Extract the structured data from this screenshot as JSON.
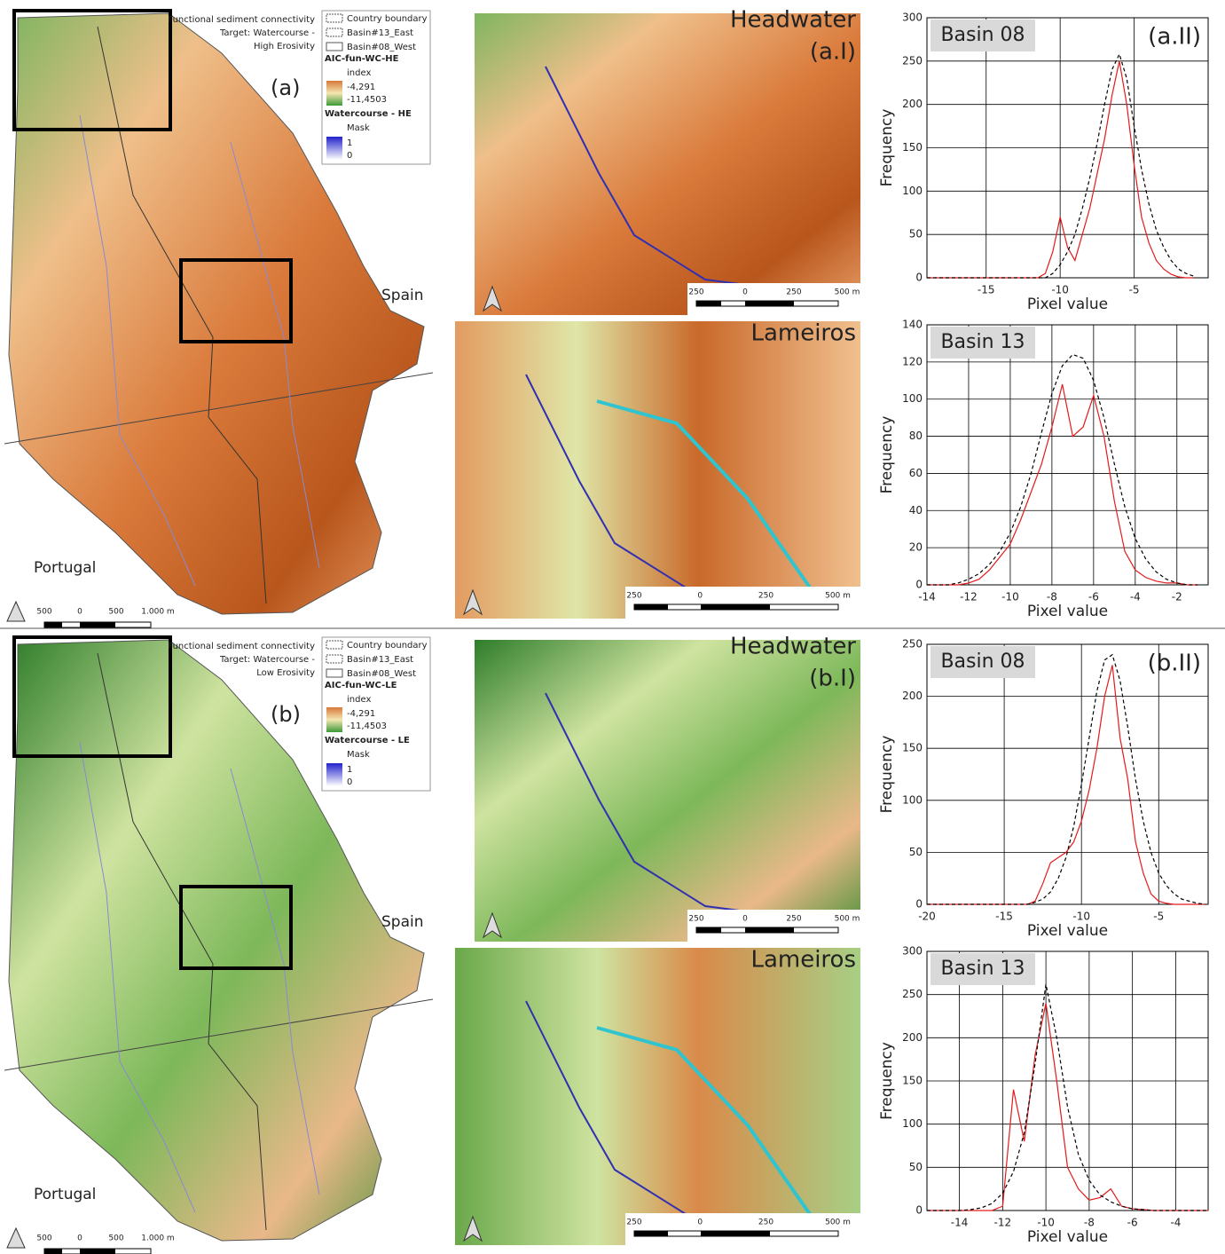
{
  "panels": [
    {
      "label": "(a)",
      "legend_title": [
        "Functional sediment connectivity",
        "Target: Watercourse -",
        "High Erosivity"
      ],
      "legend_items": [
        "Country boundary",
        "Basin#13_East",
        "Basin#08_West"
      ],
      "index_name": "AIC-fun-WC-HE",
      "index_label": "index",
      "index_values": [
        "-4,291",
        "-11,4503"
      ],
      "water_name": "Watercourse - HE",
      "water_label": "Mask",
      "water_values": [
        "1",
        "0"
      ],
      "countries": [
        "Spain",
        "Portugal"
      ],
      "scale": [
        "500",
        "0",
        "500",
        "1.000 m"
      ],
      "insets": [
        {
          "title": "Headwater",
          "label": "(a.I)",
          "scale": [
            "250",
            "0",
            "250",
            "500 m"
          ]
        },
        {
          "title": "Lameiros",
          "scale": [
            "250",
            "0",
            "250",
            "500 m"
          ]
        }
      ]
    },
    {
      "label": "(b)",
      "legend_title": [
        "Functional sediment connectivity",
        "Target: Watercourse -",
        "Low Erosivity"
      ],
      "legend_items": [
        "Country boundary",
        "Basin#13_East",
        "Basin#08_West"
      ],
      "index_name": "AIC-fun-WC-LE",
      "index_label": "index",
      "index_values": [
        "-4,291",
        "-11,4503"
      ],
      "water_name": "Watercourse - LE",
      "water_label": "Mask",
      "water_values": [
        "1",
        "0"
      ],
      "countries": [
        "Spain",
        "Portugal"
      ],
      "scale": [
        "500",
        "0",
        "500",
        "1.000 m"
      ],
      "insets": [
        {
          "title": "Headwater",
          "label": "(b.I)",
          "scale": [
            "250",
            "0",
            "250",
            "500 m"
          ]
        },
        {
          "title": "Lameiros",
          "scale": [
            "250",
            "0",
            "250",
            "500 m"
          ]
        }
      ]
    }
  ],
  "chart_data": [
    {
      "type": "line",
      "title": "Basin 08",
      "annotation": "(a.II)",
      "x_label": "Pixel value",
      "y_label": "Frequency",
      "grid": true,
      "xlim": [
        -19,
        0
      ],
      "ylim": [
        0,
        300
      ],
      "xticks": [
        -15,
        -10,
        -5
      ],
      "yticks": [
        0,
        50,
        100,
        150,
        200,
        250,
        300
      ],
      "x": [
        -19,
        -18.5,
        -18,
        -17.5,
        -17,
        -16.5,
        -16,
        -15.5,
        -15,
        -14.5,
        -14,
        -13.5,
        -13,
        -12.5,
        -12,
        -11.5,
        -11,
        -10.5,
        -10,
        -9.5,
        -9,
        -8.5,
        -8,
        -7.5,
        -7,
        -6.5,
        -6,
        -5.5,
        -5,
        -4.5,
        -4,
        -3.5,
        -3,
        -2.5,
        -2,
        -1.5,
        -1
      ],
      "series": [
        {
          "color": "#e31a1c",
          "line_style": "solid",
          "values": [
            0,
            0,
            0,
            0,
            0,
            0,
            0,
            0,
            0,
            0,
            0,
            0,
            0,
            0,
            0,
            0,
            5,
            30,
            70,
            35,
            20,
            50,
            80,
            120,
            160,
            210,
            250,
            200,
            130,
            70,
            40,
            20,
            10,
            4,
            1,
            0,
            0
          ]
        },
        {
          "color": "#000000",
          "line_style": "dashed",
          "values": [
            0,
            0,
            0,
            0,
            0,
            0,
            0,
            0,
            0,
            0,
            0,
            0,
            0,
            0,
            0,
            0,
            0,
            5,
            15,
            30,
            50,
            80,
            115,
            155,
            200,
            240,
            258,
            230,
            175,
            125,
            85,
            55,
            35,
            20,
            10,
            5,
            2
          ]
        }
      ]
    },
    {
      "type": "line",
      "title": "Basin 13",
      "x_label": "Pixel value",
      "y_label": "Frequency",
      "grid": true,
      "xlim": [
        -14,
        -0.5
      ],
      "ylim": [
        0,
        140
      ],
      "xticks": [
        -14,
        -12,
        -10,
        -8,
        -6,
        -4,
        -2
      ],
      "yticks": [
        0,
        20,
        40,
        60,
        80,
        100,
        120,
        140
      ],
      "x": [
        -14,
        -13.5,
        -13,
        -12.5,
        -12,
        -11.5,
        -11,
        -10.5,
        -10,
        -9.5,
        -9,
        -8.5,
        -8,
        -7.5,
        -7,
        -6.5,
        -6,
        -5.5,
        -5,
        -4.5,
        -4,
        -3.5,
        -3,
        -2.5,
        -2,
        -1.5,
        -1
      ],
      "series": [
        {
          "color": "#e31a1c",
          "line_style": "solid",
          "values": [
            0,
            0,
            0,
            0,
            1,
            3,
            8,
            15,
            22,
            35,
            50,
            65,
            85,
            108,
            80,
            85,
            102,
            80,
            45,
            18,
            8,
            4,
            2,
            1,
            1,
            0,
            0
          ]
        },
        {
          "color": "#000000",
          "line_style": "dashed",
          "values": [
            0,
            0,
            0,
            1,
            3,
            6,
            11,
            18,
            28,
            42,
            60,
            82,
            103,
            118,
            124,
            122,
            110,
            90,
            65,
            42,
            25,
            14,
            7,
            3,
            1,
            0,
            0
          ]
        }
      ]
    },
    {
      "type": "line",
      "title": "Basin 08",
      "annotation": "(b.II)",
      "x_label": "Pixel value",
      "y_label": "Frequency",
      "grid": true,
      "xlim": [
        -20,
        -1.8
      ],
      "ylim": [
        0,
        250
      ],
      "xticks": [
        -20,
        -15,
        -10,
        -5
      ],
      "yticks": [
        0,
        50,
        100,
        150,
        200,
        250
      ],
      "x": [
        -20,
        -19.5,
        -19,
        -18.5,
        -18,
        -17.5,
        -17,
        -16.5,
        -16,
        -15.5,
        -15,
        -14.5,
        -14,
        -13.5,
        -13,
        -12.5,
        -12,
        -11.5,
        -11,
        -10.5,
        -10,
        -9.5,
        -9,
        -8.5,
        -8,
        -7.5,
        -7,
        -6.5,
        -6,
        -5.5,
        -5,
        -4.5,
        -4,
        -3.5,
        -3,
        -2.5,
        -2
      ],
      "series": [
        {
          "color": "#e31a1c",
          "line_style": "solid",
          "values": [
            0,
            0,
            0,
            0,
            0,
            0,
            0,
            0,
            0,
            0,
            0,
            0,
            0,
            0,
            3,
            20,
            40,
            45,
            50,
            60,
            80,
            110,
            150,
            200,
            230,
            160,
            120,
            60,
            30,
            10,
            3,
            1,
            0,
            0,
            0,
            0,
            0
          ]
        },
        {
          "color": "#000000",
          "line_style": "dashed",
          "values": [
            0,
            0,
            0,
            0,
            0,
            0,
            0,
            0,
            0,
            0,
            0,
            0,
            0,
            0,
            2,
            5,
            12,
            25,
            45,
            75,
            115,
            160,
            205,
            235,
            240,
            215,
            170,
            120,
            80,
            50,
            30,
            18,
            10,
            5,
            3,
            1,
            0
          ]
        }
      ]
    },
    {
      "type": "line",
      "title": "Basin 13",
      "x_label": "Pixel value",
      "y_label": "Frequency",
      "grid": true,
      "xlim": [
        -15.5,
        -2.5
      ],
      "ylim": [
        0,
        300
      ],
      "xticks": [
        -14,
        -12,
        -10,
        -8,
        -6,
        -4
      ],
      "yticks": [
        0,
        50,
        100,
        150,
        200,
        250,
        300
      ],
      "x": [
        -15.5,
        -15,
        -14.5,
        -14,
        -13.5,
        -13,
        -12.5,
        -12,
        -11.5,
        -11,
        -10.5,
        -10,
        -9.5,
        -9,
        -8.5,
        -8,
        -7.5,
        -7,
        -6.5,
        -6,
        -5.5,
        -5,
        -4.5,
        -4,
        -3.5,
        -3,
        -2.5
      ],
      "series": [
        {
          "color": "#e31a1c",
          "line_style": "solid",
          "values": [
            0,
            0,
            0,
            0,
            0,
            0,
            0,
            5,
            140,
            80,
            180,
            240,
            150,
            50,
            25,
            12,
            15,
            25,
            5,
            2,
            1,
            0,
            0,
            0,
            0,
            0,
            0
          ]
        },
        {
          "color": "#000000",
          "line_style": "dashed",
          "values": [
            0,
            0,
            0,
            0,
            1,
            3,
            8,
            20,
            45,
            90,
            170,
            262,
            200,
            120,
            65,
            35,
            18,
            10,
            5,
            2,
            1,
            0,
            0,
            0,
            0,
            0,
            0
          ]
        }
      ]
    }
  ]
}
